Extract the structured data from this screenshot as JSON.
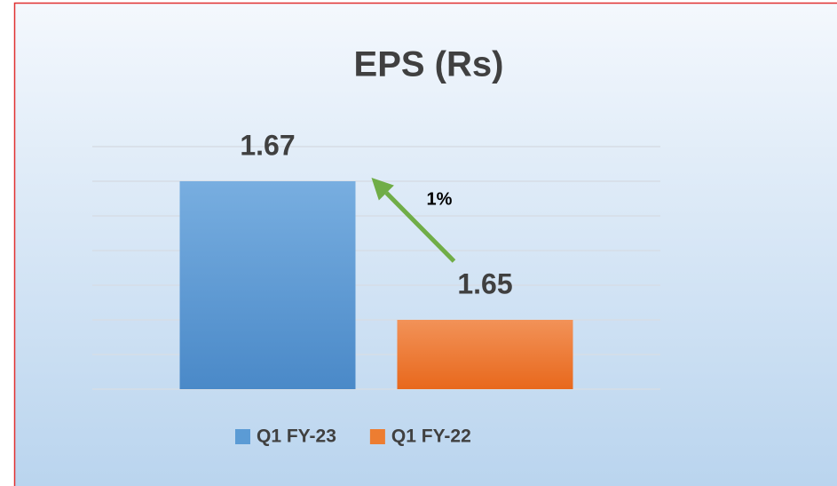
{
  "chart_data": {
    "type": "bar",
    "title": "EPS (Rs)",
    "categories": [
      null
    ],
    "series": [
      {
        "name": "Q1 FY-23",
        "color": "#5b9bd5",
        "values": [
          1.67
        ]
      },
      {
        "name": "Q1 FY-22",
        "color": "#ed7d31",
        "values": [
          1.65
        ]
      }
    ],
    "ylim": [
      1.64,
      1.675
    ],
    "yticks": [
      1.64,
      1.645,
      1.65,
      1.655,
      1.66,
      1.665,
      1.67,
      1.675
    ],
    "grid": true,
    "legend": "bottom",
    "annotations": [
      {
        "text": "1%",
        "color": "#70ad47"
      }
    ]
  }
}
